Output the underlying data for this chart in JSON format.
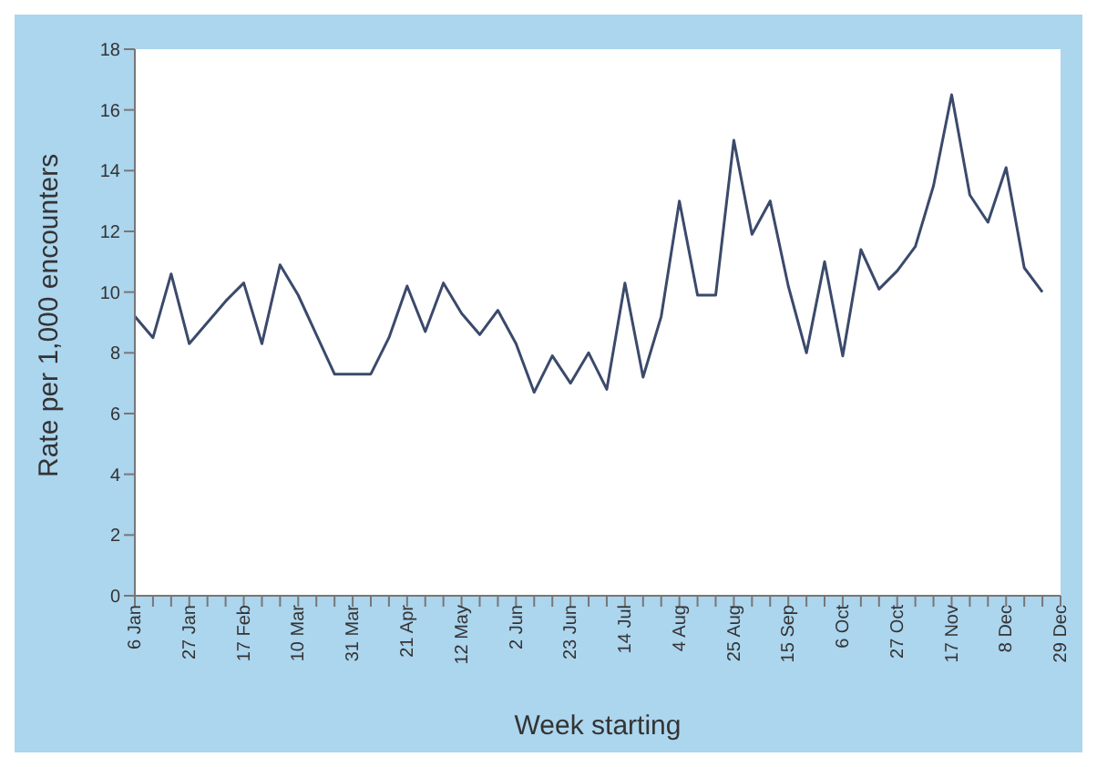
{
  "chart_data": {
    "type": "line",
    "xlabel": "Week starting",
    "ylabel": "Rate per 1,000 encounters",
    "categories": [
      "6 Jan",
      null,
      null,
      "27 Jan",
      null,
      null,
      "17 Feb",
      null,
      null,
      "10 Mar",
      null,
      null,
      "31 Mar",
      null,
      null,
      "21 Apr",
      null,
      null,
      "12 May",
      null,
      null,
      "2 Jun",
      null,
      null,
      "23 Jun",
      null,
      null,
      "14 Jul",
      null,
      null,
      "4 Aug",
      null,
      null,
      "25 Aug",
      null,
      null,
      "15 Sep",
      null,
      null,
      "6 Oct",
      null,
      null,
      "27 Oct",
      null,
      null,
      "17 Nov",
      null,
      null,
      "8 Dec",
      null,
      null,
      "29 Dec"
    ],
    "series": [
      {
        "color": "#3b4a6b",
        "values": [
          9.2,
          8.5,
          10.6,
          8.3,
          9.0,
          9.7,
          10.3,
          8.3,
          10.9,
          9.9,
          8.6,
          7.3,
          7.3,
          7.3,
          8.5,
          10.2,
          8.7,
          10.3,
          9.3,
          8.6,
          9.4,
          8.3,
          6.7,
          7.9,
          7.0,
          8.0,
          6.8,
          10.3,
          7.2,
          9.2,
          13.0,
          9.9,
          9.9,
          15.0,
          11.9,
          13.0,
          10.2,
          8.0,
          11.0,
          7.9,
          11.4,
          10.1,
          10.7,
          11.5,
          13.5,
          16.5,
          13.2,
          12.3,
          14.1,
          10.8,
          10.0,
          null
        ]
      }
    ],
    "ylim": [
      0,
      18
    ],
    "yticks": [
      0,
      2,
      4,
      6,
      8,
      10,
      12,
      14,
      16,
      18
    ],
    "grid": false,
    "legend": false,
    "marker": "none",
    "line_style": "solid"
  }
}
